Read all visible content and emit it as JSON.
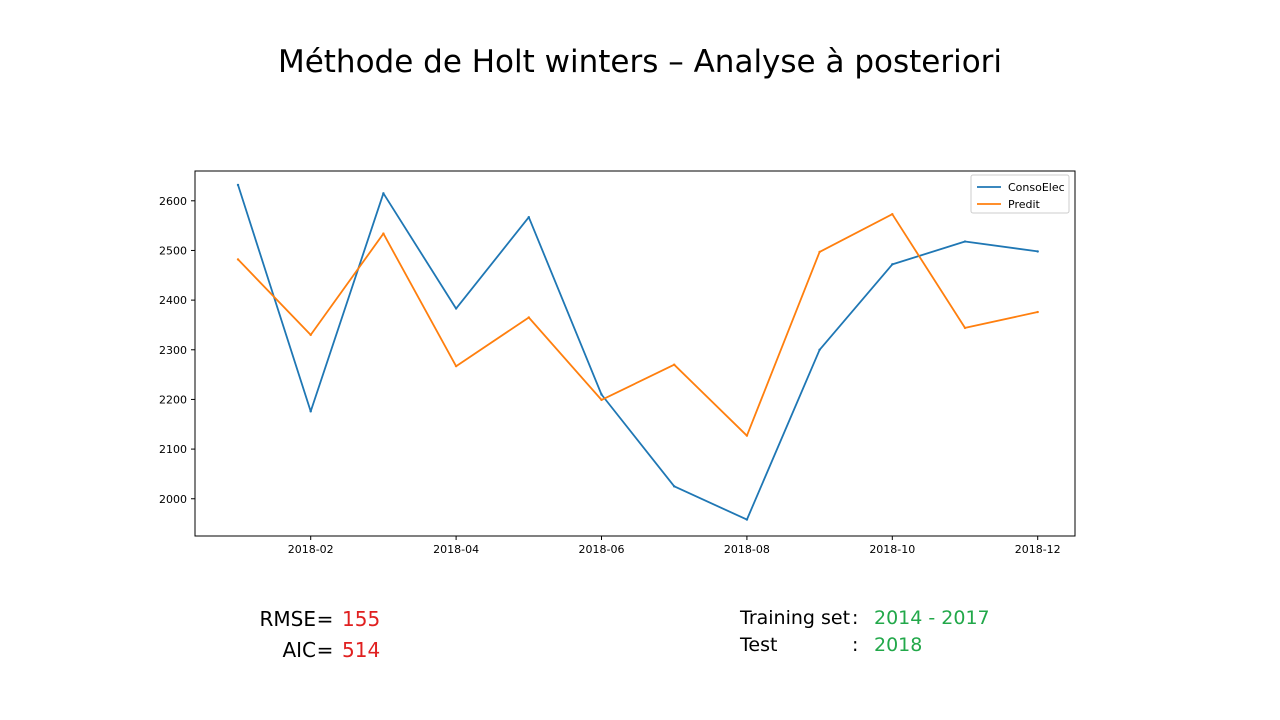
{
  "slide": {
    "title": "Méthode de Holt winters – Analyse à posteriori"
  },
  "metrics": {
    "rmse": {
      "label": "RMSE",
      "eq": "=",
      "value": "155"
    },
    "aic": {
      "label": "AIC",
      "eq": "=",
      "value": "514"
    },
    "value_color": "#e02020"
  },
  "sets": {
    "training": {
      "label": "Training set",
      "colon": ":",
      "value": "2014 - 2017"
    },
    "test": {
      "label": "Test",
      "colon": ":",
      "value": "2018"
    },
    "value_color": "#22a84a"
  },
  "chart_data": {
    "type": "line",
    "title": "",
    "xlabel": "",
    "ylabel": "",
    "x": [
      "2018-01",
      "2018-02",
      "2018-03",
      "2018-04",
      "2018-05",
      "2018-06",
      "2018-07",
      "2018-08",
      "2018-09",
      "2018-10",
      "2018-11",
      "2018-12"
    ],
    "xticks": [
      "2018-02",
      "2018-04",
      "2018-06",
      "2018-08",
      "2018-10",
      "2018-12"
    ],
    "yticks": [
      2000,
      2100,
      2200,
      2300,
      2400,
      2500,
      2600
    ],
    "ylim": [
      1925,
      2660
    ],
    "grid": false,
    "legend_position": "top-right",
    "series": [
      {
        "name": "ConsoElec",
        "color": "#1f77b4",
        "values": [
          2632,
          2176,
          2615,
          2383,
          2567,
          2210,
          2025,
          1958,
          2300,
          2472,
          2518,
          2498
        ]
      },
      {
        "name": "Predit",
        "color": "#ff7f0e",
        "values": [
          2482,
          2330,
          2534,
          2267,
          2365,
          2199,
          2270,
          2127,
          2497,
          2573,
          2344,
          2376
        ]
      }
    ]
  }
}
